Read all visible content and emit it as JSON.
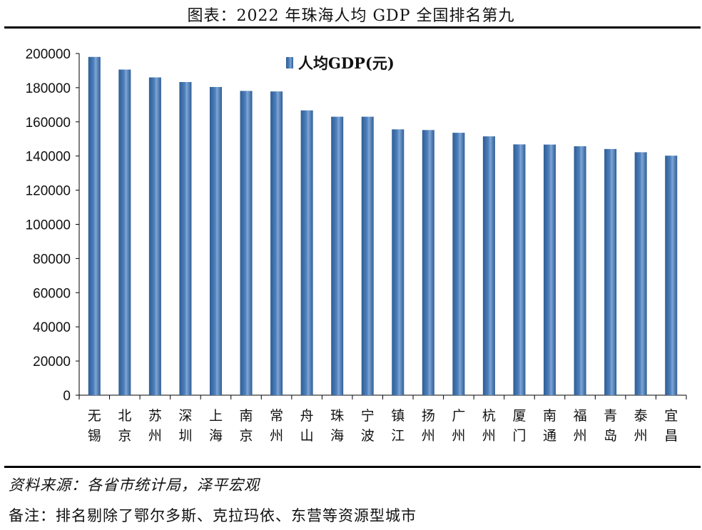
{
  "title": "图表：2022 年珠海人均 GDP 全国排名第九",
  "source": "资料来源：各省市统计局，泽平宏观",
  "note": "备注：排名剔除了鄂尔多斯、克拉玛依、东营等资源型城市",
  "chart_data": {
    "type": "bar",
    "title": "图表：2022 年珠海人均 GDP 全国排名第九",
    "xlabel": "",
    "ylabel": "",
    "ylim": [
      0,
      200000
    ],
    "yticks": [
      0,
      20000,
      40000,
      60000,
      80000,
      100000,
      120000,
      140000,
      160000,
      180000,
      200000
    ],
    "legend_position": "top-center",
    "grid": false,
    "bar_color": "#4f81bd",
    "categories": [
      "无锡",
      "北京",
      "苏州",
      "深圳",
      "上海",
      "南京",
      "常州",
      "舟山",
      "珠海",
      "宁波",
      "镇江",
      "扬州",
      "广州",
      "杭州",
      "厦门",
      "南通",
      "福州",
      "青岛",
      "泰州",
      "宜昌"
    ],
    "series": [
      {
        "name": "人均GDP(元)",
        "values": [
          198000,
          190600,
          186000,
          183300,
          180400,
          178100,
          177800,
          166700,
          163000,
          163000,
          155600,
          155200,
          153600,
          151500,
          146800,
          146700,
          145700,
          144100,
          142200,
          140200
        ]
      }
    ]
  }
}
